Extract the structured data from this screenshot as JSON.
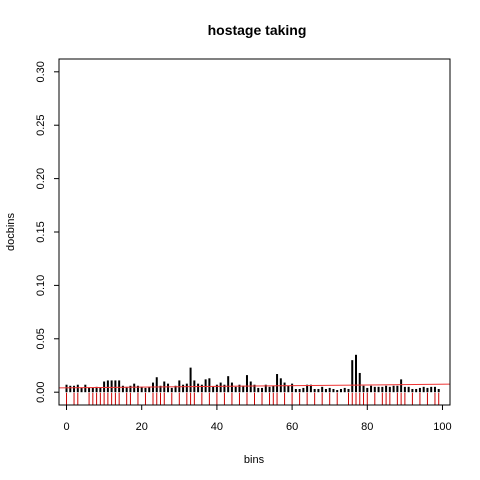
{
  "chart_data": {
    "type": "bar",
    "title": "hostage taking",
    "xlabel": "bins",
    "ylabel": "docbins",
    "xlim": [
      -2,
      102
    ],
    "ylim": [
      -0.012,
      0.312
    ],
    "x_ticks": [
      0,
      20,
      40,
      60,
      80,
      100
    ],
    "x_tick_labels": [
      "0",
      "20",
      "40",
      "60",
      "80",
      "100"
    ],
    "y_ticks": [
      0.0,
      0.05,
      0.1,
      0.15,
      0.2,
      0.25,
      0.3
    ],
    "y_tick_labels": [
      "0.00",
      "0.05",
      "0.10",
      "0.15",
      "0.20",
      "0.25",
      "0.30"
    ],
    "grid": false,
    "colors": {
      "bars": "#000000",
      "rug": "#cc0000",
      "trend": "#ee3333",
      "frame": "#000000"
    },
    "series": [
      {
        "x": [
          0,
          1,
          2,
          3,
          4,
          5,
          6,
          7,
          8,
          9,
          10,
          11,
          12,
          13,
          14,
          15,
          16,
          17,
          18,
          19,
          20,
          21,
          22,
          23,
          24,
          25,
          26,
          27,
          28,
          29,
          30,
          31,
          32,
          33,
          34,
          35,
          36,
          37,
          38,
          39,
          40,
          41,
          42,
          43,
          44,
          45,
          46,
          47,
          48,
          49,
          50,
          51,
          52,
          53,
          54,
          55,
          56,
          57,
          58,
          59,
          60,
          61,
          62,
          63,
          64,
          65,
          66,
          67,
          68,
          69,
          70,
          71,
          72,
          73,
          74,
          75,
          76,
          77,
          78,
          79,
          80,
          81,
          82,
          83,
          84,
          85,
          86,
          87,
          88,
          89,
          90,
          91,
          92,
          93,
          94,
          95,
          96,
          97,
          98,
          99
        ],
        "values": [
          0.007,
          0.006,
          0.006,
          0.007,
          0.004,
          0.007,
          0.004,
          0.004,
          0.005,
          0.004,
          0.01,
          0.011,
          0.011,
          0.011,
          0.011,
          0.006,
          0.005,
          0.006,
          0.008,
          0.006,
          0.005,
          0.004,
          0.005,
          0.009,
          0.014,
          0.006,
          0.01,
          0.008,
          0.004,
          0.006,
          0.011,
          0.007,
          0.008,
          0.023,
          0.011,
          0.008,
          0.007,
          0.012,
          0.013,
          0.005,
          0.007,
          0.009,
          0.007,
          0.015,
          0.009,
          0.005,
          0.007,
          0.006,
          0.016,
          0.01,
          0.007,
          0.004,
          0.004,
          0.007,
          0.005,
          0.006,
          0.017,
          0.013,
          0.009,
          0.006,
          0.008,
          0.003,
          0.003,
          0.004,
          0.007,
          0.007,
          0.003,
          0.003,
          0.005,
          0.003,
          0.004,
          0.003,
          0.002,
          0.003,
          0.004,
          0.003,
          0.03,
          0.035,
          0.018,
          0.006,
          0.004,
          0.006,
          0.005,
          0.005,
          0.005,
          0.006,
          0.005,
          0.006,
          0.006,
          0.012,
          0.005,
          0.005,
          0.003,
          0.003,
          0.004,
          0.005,
          0.004,
          0.005,
          0.005,
          0.003
        ]
      }
    ],
    "rug_x": [
      0,
      2,
      3,
      6,
      7,
      8,
      9,
      10,
      11,
      12,
      13,
      14,
      16,
      17,
      19,
      21,
      23,
      24,
      25,
      26,
      28,
      30,
      32,
      33,
      34,
      36,
      38,
      40,
      42,
      44,
      46,
      48,
      50,
      52,
      54,
      55,
      56,
      58,
      60,
      62,
      64,
      66,
      68,
      70,
      72,
      75,
      76,
      77,
      78,
      79,
      80,
      82,
      84,
      85,
      86,
      88,
      89,
      90,
      92,
      94,
      96,
      98,
      99
    ],
    "trend": {
      "x": [
        -2,
        102
      ],
      "y": [
        0.004,
        0.0075
      ]
    }
  }
}
